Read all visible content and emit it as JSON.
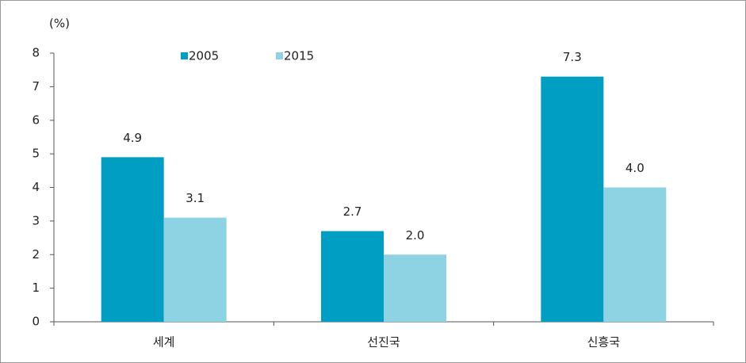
{
  "chart_data": {
    "type": "bar",
    "y_label": "(%)",
    "categories": [
      "세계",
      "선진국",
      "신흥국"
    ],
    "series": [
      {
        "name": "2005",
        "color": "#009ec3",
        "values": [
          4.9,
          2.7,
          7.3
        ],
        "value_labels": [
          "4.9",
          "2.7",
          "7.3"
        ]
      },
      {
        "name": "2015",
        "color": "#8ed3e3",
        "values": [
          3.1,
          2,
          4
        ],
        "value_labels": [
          "3.1",
          "2.0",
          "4.0"
        ]
      }
    ],
    "ylim": [
      0,
      8
    ],
    "yticks": [
      0,
      1,
      2,
      3,
      4,
      5,
      6,
      7,
      8
    ],
    "grid": false,
    "legend": "top"
  }
}
